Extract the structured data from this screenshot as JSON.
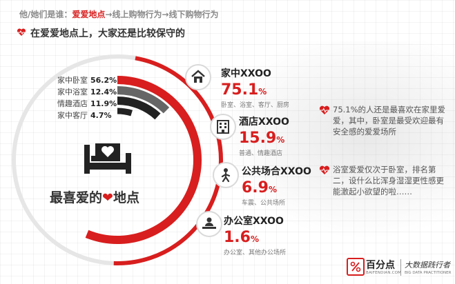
{
  "header": {
    "prefix": "他/她们是谁：",
    "p1": "爱爱地点",
    "arrow1": "→",
    "p2": "线上购物行为",
    "arrow2": "→",
    "p3": "线下购物行为",
    "subtitle": "在爱爱地点上，大家还是比较保守的"
  },
  "colors": {
    "accent": "#d81e1e",
    "dark": "#222222",
    "mid": "#666666",
    "light": "#aaaaaa",
    "ring": "#e6e6e6"
  },
  "chart_data": {
    "type": "pie",
    "title": "最喜爱的",
    "title_heart": "❤",
    "title_suffix": "地点",
    "categories": [
      "家中卧室",
      "家中浴室",
      "情趣酒店",
      "家中客厅"
    ],
    "values": [
      56.2,
      12.4,
      11.9,
      4.7
    ],
    "labels": [
      "56.2%",
      "12.4%",
      "11.9%",
      "4.7%"
    ]
  },
  "categories": [
    {
      "title": "家中XXOO",
      "pct": "75.1",
      "unit": "%",
      "sub": "卧室、浴室、客厅、厨房",
      "icon": "house-icon"
    },
    {
      "title": "酒店XXOO",
      "pct": "15.9",
      "unit": "%",
      "sub": "普通、情趣酒店",
      "icon": "building-icon"
    },
    {
      "title": "公共场合XXOO",
      "pct": "6.9",
      "unit": "%",
      "sub": "车震、公共场所",
      "icon": "person-icon"
    },
    {
      "title": "办公室XXOO",
      "pct": "1.6",
      "unit": "%",
      "sub": "办公室、其他办公场所",
      "icon": "desk-person-icon"
    }
  ],
  "notes": [
    "75.1%的人还是最喜欢在家里爱爱，其中，卧室是最受欢迎最有安全感的爱爱场所",
    "浴室爱爱仅次于卧室，排名第二，设什么比浑身湿湿更性感更能激起小欲望的啦……"
  ],
  "footer": {
    "logo_name": "百分点",
    "logo_url": "BAIFENDIAN.COM",
    "slogan": "大数据践行者",
    "slogan_en": "BIG DATA PRACTITIONER"
  }
}
